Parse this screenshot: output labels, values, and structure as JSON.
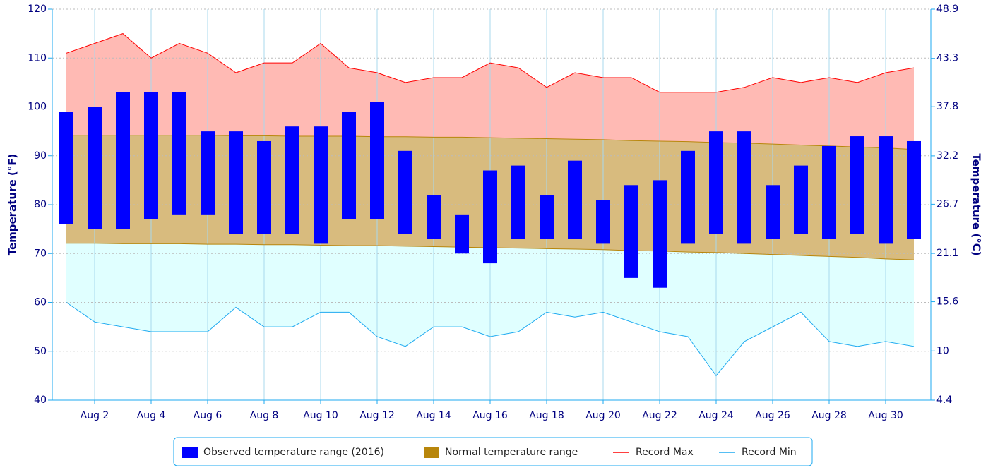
{
  "chart_data": {
    "type": "range-climate",
    "y_label": "Temperature (°F)",
    "y2_label": "Temperature (°C)",
    "categories": [
      null,
      "Aug 2",
      null,
      "Aug 4",
      null,
      "Aug 6",
      null,
      "Aug 8",
      null,
      "Aug 10",
      null,
      "Aug 12",
      null,
      "Aug 14",
      null,
      "Aug 16",
      null,
      "Aug 18",
      null,
      "Aug 20",
      null,
      "Aug 22",
      null,
      "Aug 24",
      null,
      "Aug 26",
      null,
      "Aug 28",
      null,
      "Aug 30",
      null
    ],
    "ylim": [
      40,
      120
    ],
    "yticks": [
      40,
      50,
      60,
      70,
      80,
      90,
      100,
      110,
      120
    ],
    "y2lim": [
      4.4,
      48.9
    ],
    "y2ticks": [
      4.4,
      10,
      15.6,
      21.1,
      26.7,
      32.2,
      37.8,
      43.3,
      48.9
    ],
    "grid": true,
    "legend": "bottom",
    "series": [
      {
        "name": "Observed temperature range (2016)",
        "color": "#0000ff",
        "low": [
          76,
          75,
          75,
          77,
          78,
          78,
          74,
          74,
          74,
          72,
          77,
          77,
          74,
          73,
          70,
          68,
          73,
          73,
          73,
          72,
          65,
          63,
          72,
          74,
          72,
          73,
          74,
          73,
          74,
          72,
          73
        ],
        "high": [
          99,
          100,
          103,
          103,
          103,
          95,
          95,
          93,
          96,
          96,
          99,
          101,
          91,
          82,
          78,
          87,
          88,
          82,
          89,
          81,
          84,
          85,
          91,
          95,
          95,
          84,
          88,
          92,
          94,
          94,
          93
        ]
      },
      {
        "name": "Normal temperature range",
        "color": "#b8860b",
        "low": [
          72.1,
          72.1,
          72.0,
          72.0,
          72.0,
          71.9,
          71.9,
          71.8,
          71.8,
          71.7,
          71.6,
          71.6,
          71.5,
          71.4,
          71.3,
          71.2,
          71.1,
          71.0,
          70.9,
          70.8,
          70.6,
          70.5,
          70.3,
          70.2,
          70.0,
          69.8,
          69.6,
          69.4,
          69.2,
          68.9,
          68.7
        ],
        "high": [
          94.2,
          94.2,
          94.2,
          94.2,
          94.2,
          94.2,
          94.1,
          94.1,
          94.0,
          94.0,
          94.0,
          93.9,
          93.9,
          93.8,
          93.8,
          93.7,
          93.6,
          93.5,
          93.4,
          93.3,
          93.1,
          93.0,
          92.9,
          92.7,
          92.6,
          92.4,
          92.2,
          92.0,
          91.8,
          91.6,
          91.3
        ]
      },
      {
        "name": "Record Max",
        "color": "#ff0000",
        "values": [
          111,
          113,
          115,
          110,
          113,
          111,
          107,
          109,
          109,
          113,
          108,
          107,
          105,
          106,
          106,
          109,
          108,
          104,
          107,
          106,
          106,
          103,
          103,
          103,
          104,
          106,
          105,
          106,
          105,
          107,
          108
        ]
      },
      {
        "name": "Record Min",
        "color": "#1eaaf0",
        "values": [
          60,
          56,
          55,
          54,
          54,
          54,
          59,
          55,
          55,
          58,
          58,
          53,
          51,
          55,
          55,
          53,
          54,
          58,
          57,
          58,
          56,
          54,
          53,
          45,
          52,
          55,
          58,
          52,
          51,
          52,
          51
        ]
      }
    ]
  }
}
